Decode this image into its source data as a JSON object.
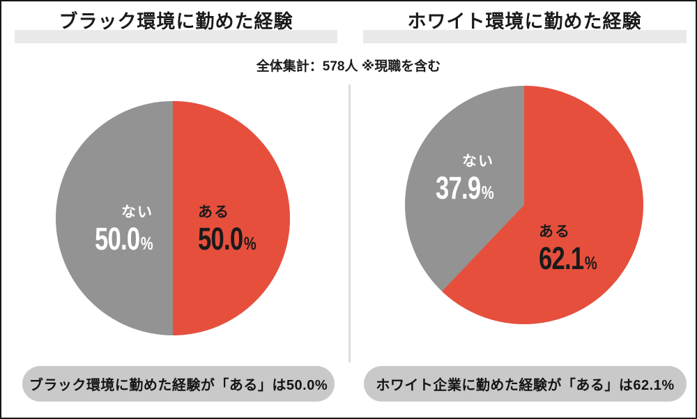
{
  "note": "全体集計：578人 ※現職を含む",
  "colors": {
    "yes_slice": "#E74F3D",
    "no_slice": "#939393",
    "title_highlight": "#E9E9E9",
    "caption_pill": "#C9C9C9",
    "divider": "#DCDCDC",
    "border": "#161616"
  },
  "chart_data": [
    {
      "type": "pie",
      "title": "ブラック環境に勤めた経験",
      "start_angle": "top",
      "direction": "clockwise",
      "legend": "none",
      "slices": [
        {
          "label": "ある",
          "value": 50.0,
          "display": "50.0",
          "unit": "%",
          "color": "#E74F3D",
          "label_color": "#1A1A1A"
        },
        {
          "label": "ない",
          "value": 50.0,
          "display": "50.0",
          "unit": "%",
          "color": "#939393",
          "label_color": "#FFFFFF"
        }
      ],
      "caption": "ブラック環境に勤めた経験が「ある」は50.0%"
    },
    {
      "type": "pie",
      "title": "ホワイト環境に勤めた経験",
      "start_angle": "top",
      "direction": "clockwise",
      "legend": "none",
      "slices": [
        {
          "label": "ある",
          "value": 62.1,
          "display": "62.1",
          "unit": "%",
          "color": "#E74F3D",
          "label_color": "#1A1A1A"
        },
        {
          "label": "ない",
          "value": 37.9,
          "display": "37.9",
          "unit": "%",
          "color": "#939393",
          "label_color": "#FFFFFF"
        }
      ],
      "caption": "ホワイト企業に勤めた経験が「ある」は62.1%"
    }
  ]
}
